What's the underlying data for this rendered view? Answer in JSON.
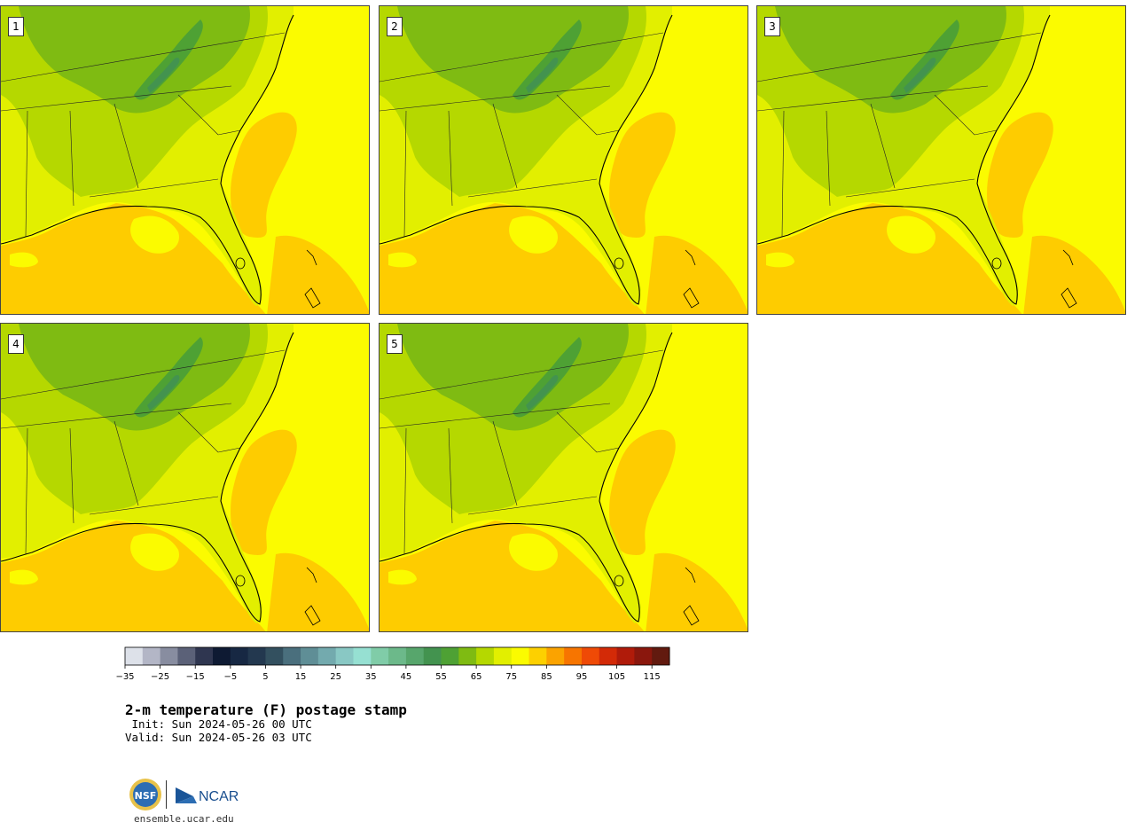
{
  "panels": [
    {
      "label": "1"
    },
    {
      "label": "2"
    },
    {
      "label": "3"
    },
    {
      "label": "4"
    },
    {
      "label": "5"
    }
  ],
  "title": "2-m temperature (F) postage stamp",
  "init_line": " Init: Sun 2024-05-26 00 UTC",
  "valid_line": "Valid: Sun 2024-05-26 03 UTC",
  "colorbar": {
    "min": -35,
    "max": 120,
    "step": 5,
    "tick_labels": [
      "−35",
      "−25",
      "−15",
      "−5",
      "5",
      "15",
      "25",
      "35",
      "45",
      "55",
      "65",
      "75",
      "85",
      "95",
      "105",
      "115"
    ],
    "colors": [
      "#dde1e9",
      "#b3b6c6",
      "#888da0",
      "#5b6178",
      "#2f3650",
      "#0e1a33",
      "#172843",
      "#23384f",
      "#33505f",
      "#4a6f7d",
      "#5f8e96",
      "#73aaae",
      "#89c8c4",
      "#96e0d2",
      "#80cca8",
      "#6cb98a",
      "#57a66c",
      "#43934f",
      "#4ea134",
      "#7fbb12",
      "#b5d800",
      "#e2ef00",
      "#fbfb00",
      "#fdd000",
      "#fba300",
      "#f77500",
      "#ef4a06",
      "#d32a07",
      "#b01b0a",
      "#8a170d",
      "#621a0f"
    ]
  },
  "colors": {
    "gulf": "#fecc00",
    "ocean": "#fbfb00",
    "land_warm": "#e2ef00",
    "land_mid": "#b5d800",
    "land_cool": "#7fbb12",
    "mountains": "#4ea134",
    "mountains_dark": "#43934f"
  },
  "logo": {
    "nsf_text": "NSF",
    "ncar_text": "NCAR",
    "url": "ensemble.ucar.edu"
  }
}
